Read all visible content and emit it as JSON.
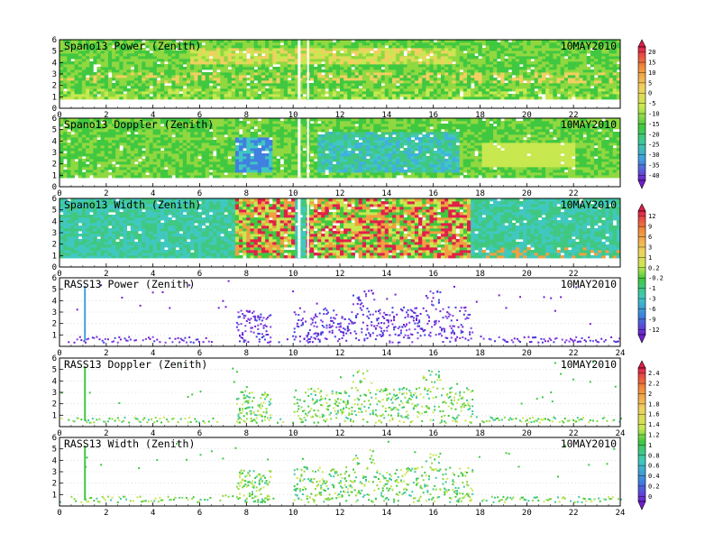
{
  "date_label": "10MAY2010",
  "colorbars": [
    {
      "name": "power",
      "ticks": [
        "20",
        "15",
        "10",
        "5",
        "0",
        "-5",
        "-10",
        "-15",
        "-20",
        "-25",
        "-30",
        "-35",
        "-40"
      ]
    },
    {
      "name": "width",
      "ticks": [
        "12",
        "9",
        "6",
        "3",
        "1",
        "0.2",
        "-0.2",
        "-1",
        "-3",
        "-6",
        "-9",
        "-12"
      ]
    },
    {
      "name": "doppler",
      "ticks": [
        "2.4",
        "2.2",
        "2",
        "1.8",
        "1.6",
        "1.4",
        "1.2",
        "1",
        "0.8",
        "0.6",
        "0.4",
        "0.2",
        "0"
      ]
    }
  ],
  "chart_data": [
    {
      "type": "heatmap",
      "title": "Spano13 Power (Zenith)",
      "x_ticks": [
        "0",
        "2",
        "4",
        "6",
        "8",
        "10",
        "12",
        "14",
        "16",
        "18",
        "20",
        "22"
      ],
      "xlim": [
        0,
        24
      ],
      "y_ticks": [
        "0",
        "1",
        "2",
        "3",
        "4",
        "5",
        "6"
      ],
      "ylim": [
        0,
        6
      ],
      "colorscale": "power",
      "note_label": "10MAY2010"
    },
    {
      "type": "heatmap",
      "title": "Spano13 Doppler (Zenith)",
      "x_ticks": [
        "0",
        "2",
        "4",
        "6",
        "8",
        "10",
        "12",
        "14",
        "16",
        "18",
        "20",
        "22"
      ],
      "xlim": [
        0,
        24
      ],
      "y_ticks": [
        "0",
        "1",
        "2",
        "3",
        "4",
        "5",
        "6"
      ],
      "ylim": [
        0,
        6
      ],
      "colorscale": "power",
      "note_label": "10MAY2010"
    },
    {
      "type": "heatmap",
      "title": "Spano13 Width (Zenith)",
      "x_ticks": [
        "0",
        "2",
        "4",
        "6",
        "8",
        "10",
        "12",
        "14",
        "16",
        "18",
        "20",
        "22"
      ],
      "xlim": [
        0,
        24
      ],
      "y_ticks": [
        "0",
        "1",
        "2",
        "3",
        "4",
        "5",
        "6"
      ],
      "ylim": [
        0,
        6
      ],
      "colorscale": "width",
      "note_label": "10MAY2010"
    },
    {
      "type": "scatter",
      "title": "RASS13 Power (Zenith)",
      "x_ticks": [
        "0",
        "2",
        "4",
        "6",
        "8",
        "10",
        "12",
        "14",
        "16",
        "18",
        "20",
        "22",
        "24"
      ],
      "xlim": [
        0,
        24
      ],
      "y_ticks": [
        "1",
        "2",
        "3",
        "4",
        "5",
        "6"
      ],
      "ylim": [
        0,
        6
      ],
      "colorscale": "width",
      "note_label": "10MAY2010"
    },
    {
      "type": "scatter",
      "title": "RASS13 Doppler (Zenith)",
      "x_ticks": [
        "0",
        "2",
        "4",
        "6",
        "8",
        "10",
        "12",
        "14",
        "16",
        "18",
        "20",
        "22",
        "24"
      ],
      "xlim": [
        0,
        24
      ],
      "y_ticks": [
        "1",
        "2",
        "3",
        "4",
        "5",
        "6"
      ],
      "ylim": [
        0,
        6
      ],
      "colorscale": "doppler",
      "note_label": "10MAY2010"
    },
    {
      "type": "scatter",
      "title": "RASS13 Width (Zenith)",
      "x_ticks": [
        "0",
        "2",
        "4",
        "6",
        "8",
        "10",
        "12",
        "14",
        "16",
        "18",
        "20",
        "22",
        "24"
      ],
      "xlim": [
        0,
        24
      ],
      "y_ticks": [
        "1",
        "2",
        "3",
        "4",
        "5",
        "6"
      ],
      "ylim": [
        0,
        6
      ],
      "colorscale": "doppler",
      "note_label": "10MAY2010"
    }
  ]
}
